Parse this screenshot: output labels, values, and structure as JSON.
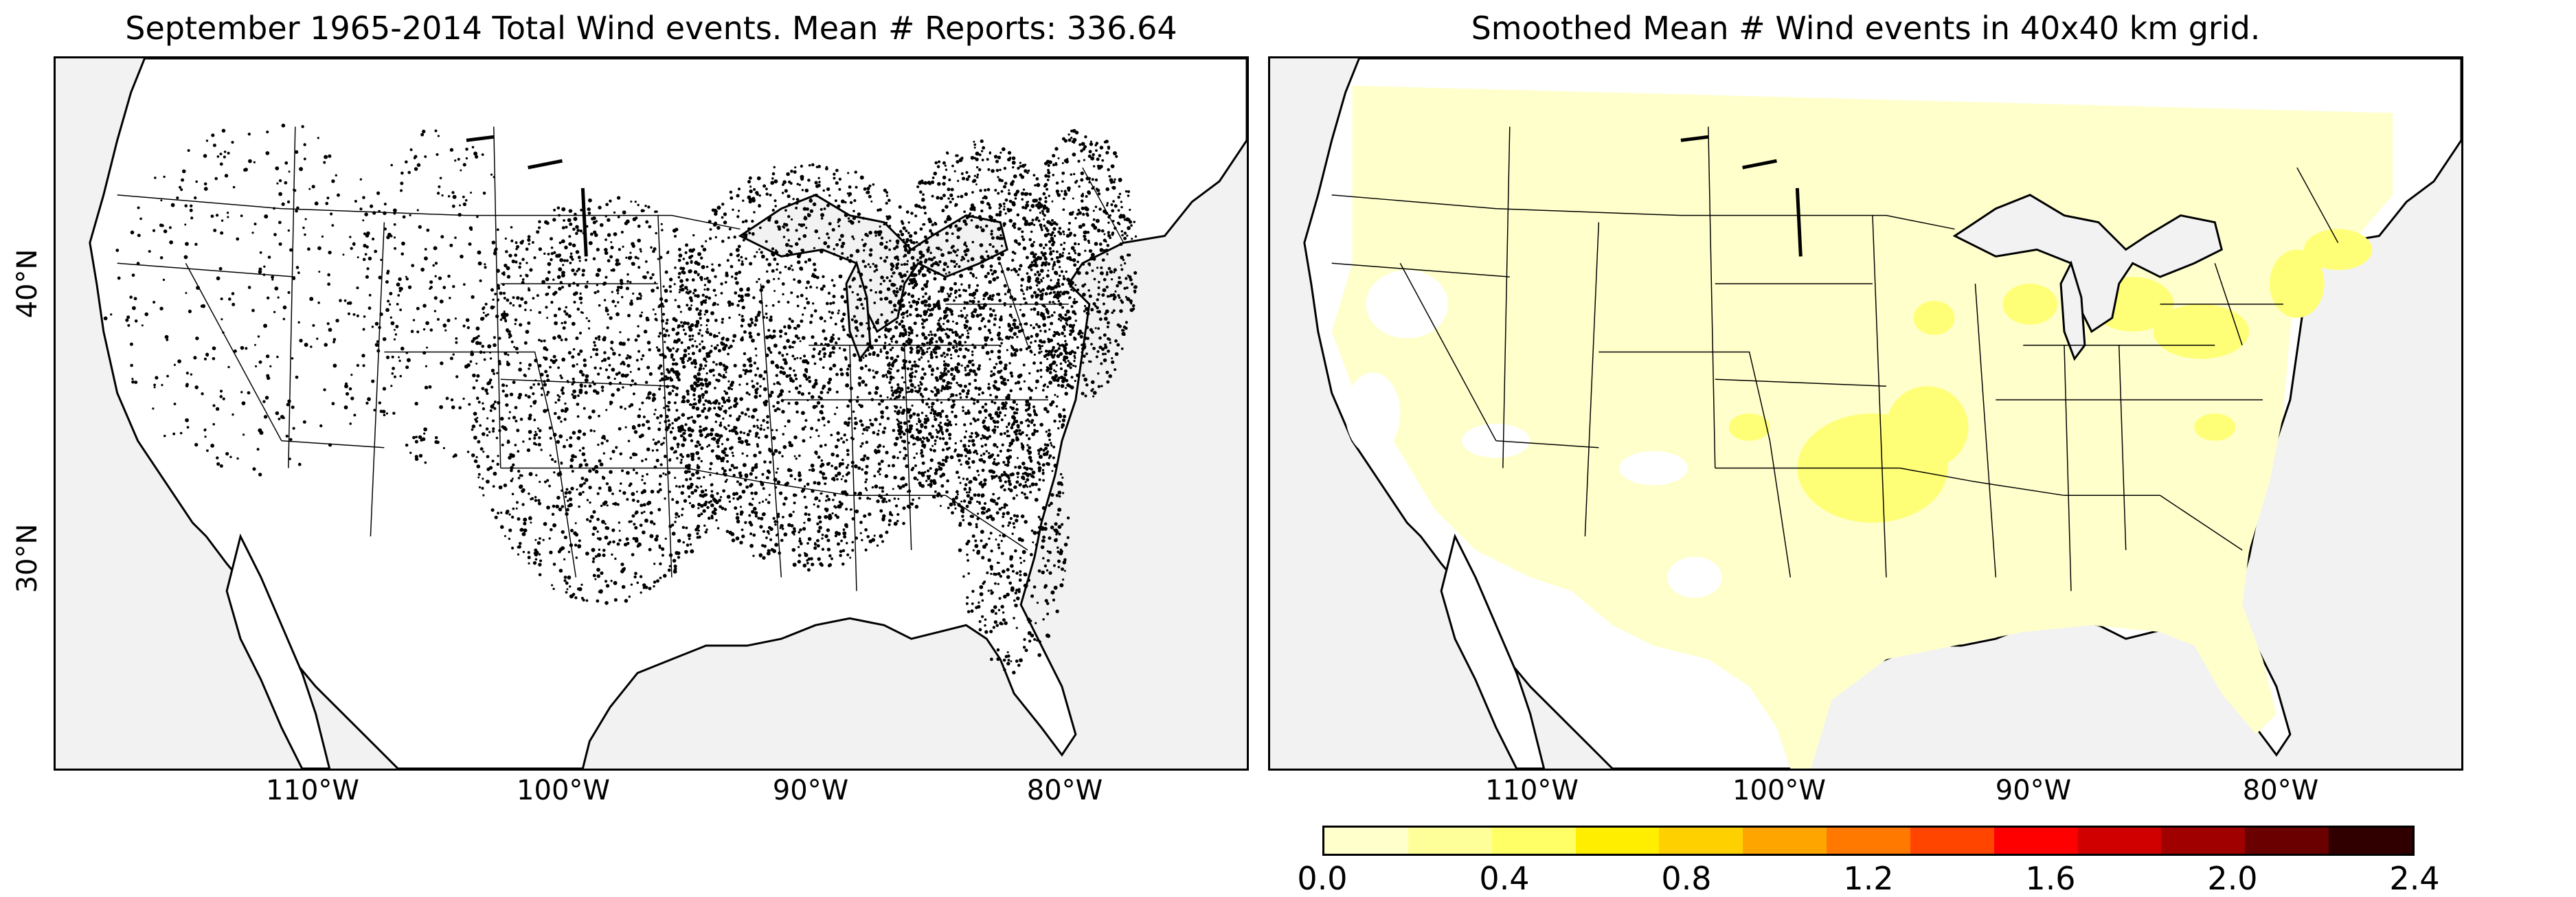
{
  "left_panel": {
    "title": "September 1965-2014 Total Wind events. Mean # Reports: 336.64",
    "lat_labels": [
      "40°N",
      "30°N"
    ],
    "lon_labels": [
      "110°W",
      "100°W",
      "90°W",
      "80°W"
    ]
  },
  "right_panel": {
    "title": "Smoothed Mean # Wind events in 40x40 km grid.",
    "lon_labels": [
      "110°W",
      "100°W",
      "90°W",
      "80°W"
    ]
  },
  "colorbar": {
    "ticks": [
      "0.0",
      "0.4",
      "0.8",
      "1.2",
      "1.6",
      "2.0",
      "2.4"
    ],
    "colors": [
      "#ffffcc",
      "#ffff99",
      "#ffff66",
      "#ffee00",
      "#ffd000",
      "#ffa500",
      "#ff7800",
      "#ff4500",
      "#ff0000",
      "#d00000",
      "#a00000",
      "#6a0000",
      "#300000"
    ]
  },
  "colors": {
    "land": "#ffffff",
    "ocean": "#f2f2f2",
    "light_yellow": "#ffffcc",
    "yellow": "#ffff77"
  }
}
